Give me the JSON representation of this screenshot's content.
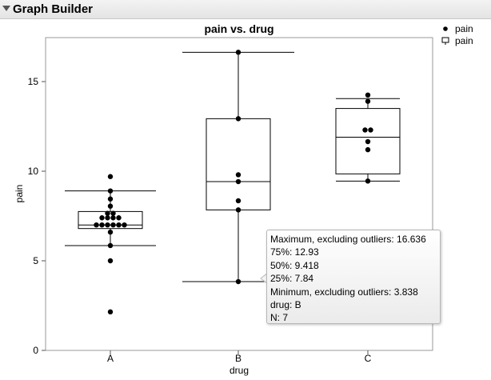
{
  "window": {
    "title": "Graph Builder"
  },
  "chart_data": {
    "type": "box",
    "title": "pain vs. drug",
    "xlabel": "drug",
    "ylabel": "pain",
    "categories": [
      "A",
      "B",
      "C"
    ],
    "ylim": [
      0,
      17.5
    ],
    "yticks": [
      0,
      5,
      10,
      15
    ],
    "grid": false,
    "legend": {
      "position": "top-right",
      "entries": [
        {
          "label": "pain",
          "marker": "dot-icon"
        },
        {
          "label": "pain",
          "marker": "box-plot-icon"
        }
      ]
    },
    "boxes": [
      {
        "category": "A",
        "min": 5.85,
        "q1": 6.8,
        "median": 7.0,
        "q3": 7.75,
        "max": 8.9
      },
      {
        "category": "B",
        "min": 3.838,
        "q1": 7.84,
        "median": 9.418,
        "q3": 12.93,
        "max": 16.636
      },
      {
        "category": "C",
        "min": 9.45,
        "q1": 9.85,
        "median": 11.9,
        "q3": 13.5,
        "max": 14.05
      }
    ],
    "points": [
      {
        "x": "A",
        "y": 9.7
      },
      {
        "x": "A",
        "y": 8.9
      },
      {
        "x": "A",
        "y": 8.45
      },
      {
        "x": "A",
        "y": 8.05
      },
      {
        "x": "A",
        "y": 7.65
      },
      {
        "x": "A",
        "y": 7.65
      },
      {
        "x": "A",
        "y": 7.4
      },
      {
        "x": "A",
        "y": 7.4
      },
      {
        "x": "A",
        "y": 7.4
      },
      {
        "x": "A",
        "y": 7.4
      },
      {
        "x": "A",
        "y": 7.0
      },
      {
        "x": "A",
        "y": 7.0
      },
      {
        "x": "A",
        "y": 7.0
      },
      {
        "x": "A",
        "y": 7.0
      },
      {
        "x": "A",
        "y": 7.0
      },
      {
        "x": "A",
        "y": 7.0
      },
      {
        "x": "A",
        "y": 6.6
      },
      {
        "x": "A",
        "y": 5.85
      },
      {
        "x": "A",
        "y": 5.0
      },
      {
        "x": "A",
        "y": 2.15
      },
      {
        "x": "B",
        "y": 16.636
      },
      {
        "x": "B",
        "y": 12.93
      },
      {
        "x": "B",
        "y": 9.8
      },
      {
        "x": "B",
        "y": 9.418
      },
      {
        "x": "B",
        "y": 8.35
      },
      {
        "x": "B",
        "y": 7.84
      },
      {
        "x": "B",
        "y": 3.838
      },
      {
        "x": "C",
        "y": 14.25
      },
      {
        "x": "C",
        "y": 13.9
      },
      {
        "x": "C",
        "y": 12.3
      },
      {
        "x": "C",
        "y": 12.3
      },
      {
        "x": "C",
        "y": 11.65
      },
      {
        "x": "C",
        "y": 11.2
      },
      {
        "x": "C",
        "y": 9.45
      }
    ]
  },
  "tooltip": {
    "lines": [
      "Maximum, excluding outliers: 16.636",
      "75%: 12.93",
      "50%: 9.418",
      "25%: 7.84",
      "Minimum, excluding outliers: 3.838",
      "drug: B",
      "N: 7"
    ]
  }
}
